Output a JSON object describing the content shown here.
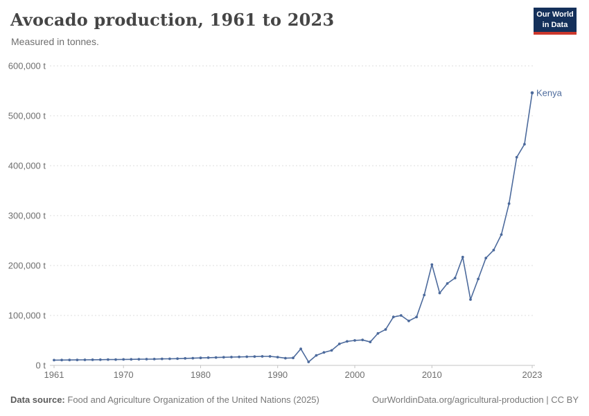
{
  "header": {
    "title": "Avocado production, 1961 to 2023",
    "subtitle": "Measured in tonnes.",
    "logo": {
      "line1": "Our World",
      "line2": "in Data",
      "bg_color": "#14305a",
      "accent_color": "#cc372c"
    }
  },
  "chart_data": {
    "type": "line",
    "title": "Avocado production, 1961 to 2023",
    "subtitle": "Measured in tonnes.",
    "unit": "tonnes",
    "grid": "horizontal-dashed",
    "legend_position": "end-of-line-label",
    "xlabel": "",
    "ylabel": "",
    "xlim": [
      1961,
      2023
    ],
    "ylim": [
      0,
      600000
    ],
    "xticks": [
      1961,
      1970,
      1980,
      1990,
      2000,
      2010,
      2023
    ],
    "yticks": [
      {
        "value": 0,
        "label": "0 t"
      },
      {
        "value": 100000,
        "label": "100,000 t"
      },
      {
        "value": 200000,
        "label": "200,000 t"
      },
      {
        "value": 300000,
        "label": "300,000 t"
      },
      {
        "value": 400000,
        "label": "400,000 t"
      },
      {
        "value": 500000,
        "label": "500,000 t"
      },
      {
        "value": 600000,
        "label": "600,000 t"
      }
    ],
    "x": [
      1961,
      1962,
      1963,
      1964,
      1965,
      1966,
      1967,
      1968,
      1969,
      1970,
      1971,
      1972,
      1973,
      1974,
      1975,
      1976,
      1977,
      1978,
      1979,
      1980,
      1981,
      1982,
      1983,
      1984,
      1985,
      1986,
      1987,
      1988,
      1989,
      1990,
      1991,
      1992,
      1993,
      1994,
      1995,
      1996,
      1997,
      1998,
      1999,
      2000,
      2001,
      2002,
      2003,
      2004,
      2005,
      2006,
      2007,
      2008,
      2009,
      2010,
      2011,
      2012,
      2013,
      2014,
      2015,
      2016,
      2017,
      2018,
      2019,
      2020,
      2021,
      2022,
      2023
    ],
    "series": [
      {
        "name": "Kenya",
        "color": "#4C6A9C",
        "values": [
          10500,
          10700,
          10800,
          11000,
          11100,
          11300,
          11400,
          11600,
          11700,
          11900,
          12100,
          12300,
          12500,
          12700,
          13000,
          13200,
          13500,
          14000,
          14500,
          15000,
          15400,
          15800,
          16200,
          16600,
          17000,
          17300,
          17600,
          18000,
          18000,
          16500,
          14500,
          15000,
          33000,
          7000,
          20000,
          26000,
          30000,
          43000,
          48000,
          50000,
          51000,
          47000,
          64000,
          72000,
          97000,
          100000,
          89000,
          97000,
          141000,
          202000,
          145000,
          164000,
          175000,
          217000,
          132000,
          173000,
          215000,
          231000,
          262000,
          324000,
          417000,
          443000,
          546000
        ]
      }
    ],
    "end_label": "Kenya"
  },
  "footer": {
    "source_label": "Data source:",
    "source_text": "Food and Agriculture Organization of the United Nations (2025)",
    "credit": "OurWorldinData.org/agricultural-production | CC BY"
  }
}
